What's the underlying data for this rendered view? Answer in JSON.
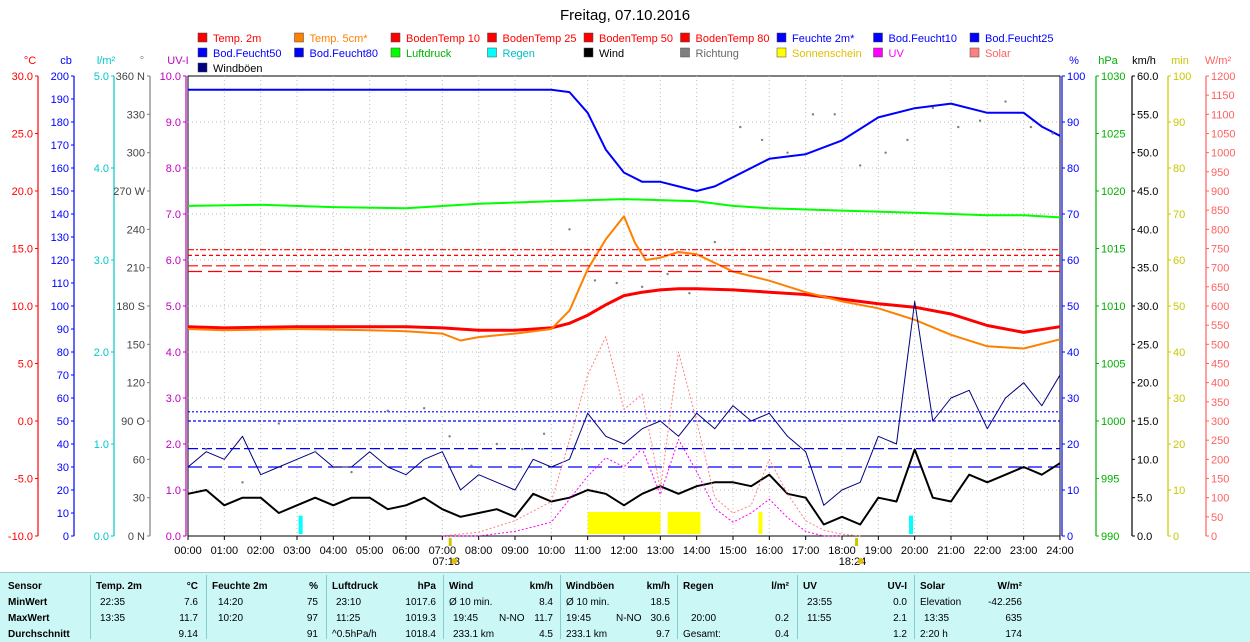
{
  "title": "Freitag, 07.10.2016",
  "legend": [
    {
      "label": "Temp. 2m",
      "color": "#ff0000"
    },
    {
      "label": "Temp. 5cm*",
      "color": "#ff8000"
    },
    {
      "label": "BodenTemp 10",
      "color": "#ff0000"
    },
    {
      "label": "BodenTemp 25",
      "color": "#ff0000"
    },
    {
      "label": "BodenTemp 50",
      "color": "#ff0000"
    },
    {
      "label": "BodenTemp 80",
      "color": "#ff0000"
    },
    {
      "label": "Feuchte 2m*",
      "color": "#0000ff"
    },
    {
      "label": "Bod.Feucht10",
      "color": "#0000ff"
    },
    {
      "label": "Bod.Feucht25",
      "color": "#0000ff"
    },
    {
      "label": "Bod.Feucht50",
      "color": "#0000ff"
    },
    {
      "label": "Bod.Feucht80",
      "color": "#0000ff"
    },
    {
      "label": "Luftdruck",
      "color": "#00ff00"
    },
    {
      "label": "Regen",
      "color": "#00ffff"
    },
    {
      "label": "Wind",
      "color": "#000000"
    },
    {
      "label": "Richtung",
      "color": "#808080"
    },
    {
      "label": "Sonnenschein",
      "color": "#ffff00"
    },
    {
      "label": "UV",
      "color": "#ff00ff"
    },
    {
      "label": "Solar",
      "color": "#ff8080"
    },
    {
      "label": "Windböen",
      "color": "#000080"
    }
  ],
  "axes": {
    "temp": {
      "unit": "°C",
      "color": "#ff0000",
      "ticks": [
        "30.0",
        "25.0",
        "20.0",
        "15.0",
        "10.0",
        "5.0",
        "0.0",
        "-5.0",
        "-10.0"
      ]
    },
    "cb": {
      "unit": "cb",
      "color": "#0000ff",
      "ticks": [
        "200",
        "190",
        "180",
        "170",
        "160",
        "150",
        "140",
        "130",
        "120",
        "110",
        "100",
        "90",
        "80",
        "70",
        "60",
        "50",
        "40",
        "30",
        "20",
        "10",
        "0"
      ]
    },
    "rain": {
      "unit": "l/m²",
      "color": "#00c8c8",
      "ticks": [
        "5.0",
        "4.0",
        "3.0",
        "2.0",
        "1.0",
        "0.0"
      ]
    },
    "dir": {
      "unit": "°",
      "color": "#808080",
      "ticks": [
        "360 N",
        "330",
        "300",
        "270 W",
        "240",
        "210",
        "180 S",
        "150",
        "120",
        "90 O",
        "60",
        "30",
        "0 N"
      ]
    },
    "uv": {
      "unit": "UV-I",
      "color": "#c000c0",
      "ticks": [
        "10.0",
        "9.0",
        "8.0",
        "7.0",
        "6.0",
        "5.0",
        "4.0",
        "3.0",
        "2.0",
        "1.0",
        "0.0"
      ]
    },
    "hum": {
      "unit": "%",
      "color": "#0000ff",
      "ticks": [
        "100",
        "90",
        "80",
        "70",
        "60",
        "50",
        "40",
        "30",
        "20",
        "10",
        "0"
      ]
    },
    "press": {
      "unit": "hPa",
      "color": "#00b000",
      "ticks": [
        "1030",
        "1025",
        "1020",
        "1015",
        "1010",
        "1005",
        "1000",
        "995",
        "990"
      ]
    },
    "wind": {
      "unit": "km/h",
      "color": "#000000",
      "ticks": [
        "60.0",
        "55.0",
        "50.0",
        "45.0",
        "40.0",
        "35.0",
        "30.0",
        "25.0",
        "20.0",
        "15.0",
        "10.0",
        "5.0",
        "0.0"
      ]
    },
    "sun": {
      "unit": "min",
      "color": "#c8c800",
      "ticks": [
        "100",
        "90",
        "80",
        "70",
        "60",
        "50",
        "40",
        "30",
        "20",
        "10",
        "0"
      ]
    },
    "solar": {
      "unit": "W/m²",
      "color": "#ff6060",
      "ticks": [
        "1200",
        "1150",
        "1100",
        "1050",
        "1000",
        "950",
        "900",
        "850",
        "800",
        "750",
        "700",
        "650",
        "600",
        "550",
        "500",
        "450",
        "400",
        "350",
        "300",
        "250",
        "200",
        "150",
        "100",
        "50",
        "0"
      ]
    }
  },
  "x_ticks": [
    "00:00",
    "01:00",
    "02:00",
    "03:00",
    "04:00",
    "05:00",
    "06:00",
    "07:00",
    "08:00",
    "09:00",
    "10:00",
    "11:00",
    "12:00",
    "13:00",
    "14:00",
    "15:00",
    "16:00",
    "17:00",
    "18:00",
    "19:00",
    "20:00",
    "21:00",
    "22:00",
    "23:00",
    "24:00"
  ],
  "sunrise": "07:13",
  "sunset": "18:24",
  "chart_data": {
    "type": "line",
    "x_unit": "hours",
    "x_range": [
      0,
      24
    ],
    "series": [
      {
        "name": "Temp. 2m",
        "axis": "temp",
        "color": "#ff0000",
        "x": [
          0,
          1,
          3,
          5,
          6,
          7,
          8,
          9,
          10,
          10.5,
          11,
          11.5,
          12,
          12.5,
          13,
          13.5,
          14,
          15,
          16,
          17,
          18,
          19,
          20,
          21,
          22,
          23,
          24
        ],
        "y": [
          8.2,
          8.1,
          8.2,
          8.2,
          8.2,
          8.1,
          7.9,
          7.9,
          8.1,
          8.5,
          9.2,
          10.1,
          10.9,
          11.2,
          11.4,
          11.5,
          11.5,
          11.4,
          11.2,
          11.0,
          10.6,
          10.2,
          9.9,
          9.3,
          8.3,
          7.7,
          8.2
        ]
      },
      {
        "name": "Temp. 5cm*",
        "axis": "temp",
        "color": "#ff8000",
        "x": [
          0,
          1,
          3,
          5,
          6,
          7,
          7.5,
          8,
          9,
          10,
          10.5,
          11,
          11.5,
          12,
          12.3,
          12.6,
          13,
          13.5,
          14,
          15,
          16,
          17,
          18,
          19,
          20,
          21,
          22,
          23,
          24
        ],
        "y": [
          8.0,
          7.9,
          8.0,
          7.9,
          7.8,
          7.6,
          7.0,
          7.3,
          7.6,
          8.0,
          9.6,
          13.2,
          15.8,
          17.8,
          15.5,
          14.0,
          14.2,
          14.7,
          14.5,
          13.0,
          12.2,
          11.2,
          10.4,
          9.8,
          8.8,
          7.5,
          6.5,
          6.3,
          7.1
        ]
      },
      {
        "name": "BodenTemp 10",
        "axis": "temp",
        "color": "#ff0000",
        "x": [
          0,
          24
        ],
        "y": [
          14.9,
          14.9
        ]
      },
      {
        "name": "BodenTemp 25",
        "axis": "temp",
        "color": "#ff0000",
        "x": [
          0,
          24
        ],
        "y": [
          14.4,
          14.4
        ]
      },
      {
        "name": "BodenTemp 50",
        "axis": "temp",
        "color": "#ff0000",
        "x": [
          0,
          24
        ],
        "y": [
          13.5,
          13.5
        ]
      },
      {
        "name": "BodenTemp 80",
        "axis": "temp",
        "color": "#ff0000",
        "x": [
          0,
          24
        ],
        "y": [
          13.0,
          13.0
        ]
      },
      {
        "name": "Feuchte 2m*",
        "axis": "hum",
        "color": "#0000ff",
        "x": [
          0,
          1,
          2,
          3,
          4,
          5,
          6,
          7,
          8,
          9,
          10,
          10.5,
          11,
          11.5,
          12,
          12.5,
          13,
          13.5,
          14,
          14.5,
          15,
          16,
          17,
          18,
          19,
          20,
          21,
          22,
          23,
          23.5,
          24
        ],
        "y": [
          97,
          97,
          97,
          97,
          97,
          97,
          97,
          97,
          97,
          97,
          97,
          96.5,
          92,
          84,
          79,
          77,
          77,
          76,
          75,
          76,
          78,
          82,
          83,
          86,
          91,
          93,
          94,
          92,
          92,
          89,
          87
        ]
      },
      {
        "name": "Bod.Feucht10",
        "axis": "hum",
        "color": "#0000ff",
        "x": [
          0,
          24
        ],
        "y": [
          27,
          27
        ]
      },
      {
        "name": "Bod.Feucht25",
        "axis": "hum",
        "color": "#0000ff",
        "x": [
          0,
          24
        ],
        "y": [
          25,
          25
        ]
      },
      {
        "name": "Bod.Feucht50",
        "axis": "hum",
        "color": "#0000ff",
        "x": [
          0,
          24
        ],
        "y": [
          19,
          19
        ]
      },
      {
        "name": "Bod.Feucht80",
        "axis": "hum",
        "color": "#0000ff",
        "x": [
          0,
          24
        ],
        "y": [
          15,
          15
        ]
      },
      {
        "name": "Luftdruck",
        "axis": "press",
        "color": "#00ff00",
        "x": [
          0,
          2,
          4,
          6,
          8,
          10,
          12,
          14,
          15,
          16,
          18,
          20,
          22,
          23,
          24
        ],
        "y": [
          1018.7,
          1018.8,
          1018.6,
          1018.5,
          1018.9,
          1019.1,
          1019.3,
          1019.1,
          1018.7,
          1018.5,
          1018.3,
          1018.1,
          1017.9,
          1017.9,
          1017.7
        ]
      },
      {
        "name": "Wind",
        "axis": "wind",
        "color": "#000000",
        "x": [
          0,
          0.5,
          1,
          1.5,
          2,
          2.5,
          3,
          3.5,
          4,
          4.5,
          5,
          5.5,
          6,
          6.5,
          7,
          7.5,
          8,
          8.5,
          9,
          9.5,
          10,
          10.5,
          11,
          11.5,
          12,
          12.5,
          13,
          13.5,
          14,
          14.5,
          15,
          15.5,
          16,
          16.5,
          17,
          17.5,
          18,
          18.5,
          19,
          19.5,
          20,
          20.5,
          21,
          21.5,
          22,
          22.5,
          23,
          23.5,
          24
        ],
        "y": [
          5.5,
          6,
          4,
          5,
          5,
          3,
          4,
          5,
          4,
          5,
          5,
          3.5,
          4,
          5,
          3.5,
          2.5,
          3,
          3.5,
          2.5,
          5.5,
          4.5,
          5,
          6,
          5.5,
          4,
          5.5,
          6.5,
          5.5,
          6.5,
          7,
          7,
          6.5,
          8,
          5.5,
          5,
          1.5,
          2.5,
          1.5,
          5,
          4.5,
          11.3,
          5,
          4.5,
          8,
          7,
          8,
          9,
          8,
          9.5
        ]
      },
      {
        "name": "Windböen",
        "axis": "wind",
        "color": "#000080",
        "x": [
          0,
          0.5,
          1,
          1.5,
          2,
          2.5,
          3,
          3.5,
          4,
          4.5,
          5,
          5.5,
          6,
          6.5,
          7,
          7.5,
          8,
          8.5,
          9,
          9.5,
          10,
          10.5,
          11,
          11.5,
          12,
          12.5,
          13,
          13.5,
          14,
          14.5,
          15,
          15.5,
          16,
          16.5,
          17,
          17.5,
          18,
          18.5,
          19,
          19.5,
          20,
          20.5,
          21,
          21.5,
          22,
          22.5,
          23,
          23.5,
          24
        ],
        "y": [
          9,
          11,
          10,
          13,
          8,
          9,
          10,
          11,
          9,
          9,
          11,
          9,
          8,
          10,
          11,
          6,
          8,
          7,
          6,
          10,
          9,
          10,
          16,
          13,
          12,
          14,
          15,
          13,
          16,
          14,
          17,
          15,
          16,
          13,
          11,
          4,
          6,
          7,
          13,
          12,
          30.6,
          15,
          18,
          19,
          14,
          18,
          20,
          17,
          21
        ]
      },
      {
        "name": "Richtung",
        "axis": "dir",
        "color": "#808080",
        "type": "scatter",
        "x": [
          0.5,
          1.5,
          2.5,
          3.5,
          4.5,
          5.5,
          6.5,
          7.2,
          7.8,
          8.5,
          9.2,
          9.8,
          10.5,
          11.2,
          11.8,
          12.5,
          13.2,
          13.8,
          14.5,
          15.2,
          15.8,
          16.5,
          17.2,
          17.8,
          18.5,
          19.2,
          19.8,
          20.5,
          21.2,
          21.8,
          22.5,
          23.2,
          23.8
        ],
        "y": [
          68,
          42,
          88,
          66,
          50,
          98,
          100,
          78,
          55,
          72,
          68,
          80,
          240,
          200,
          198,
          195,
          205,
          190,
          230,
          320,
          310,
          300,
          330,
          330,
          290,
          300,
          310,
          335,
          320,
          325,
          340,
          320,
          315
        ]
      },
      {
        "name": "Solar",
        "axis": "solar",
        "color": "#ff8080",
        "x": [
          7,
          8,
          9,
          10,
          10.5,
          11,
          11.5,
          12,
          12.5,
          13,
          13.5,
          14,
          14.5,
          15,
          15.5,
          16,
          16.5,
          17,
          17.5,
          18,
          18.5
        ],
        "y": [
          0,
          10,
          40,
          90,
          250,
          420,
          520,
          330,
          370,
          120,
          480,
          300,
          100,
          60,
          80,
          200,
          110,
          40,
          15,
          5,
          0
        ]
      },
      {
        "name": "UV",
        "axis": "uv",
        "color": "#ff00ff",
        "x": [
          7,
          8,
          9,
          10,
          10.5,
          11,
          11.5,
          12,
          12.5,
          13,
          13.5,
          14,
          14.5,
          15,
          15.5,
          16,
          16.5,
          17,
          17.5,
          18
        ],
        "y": [
          0,
          0,
          0.1,
          0.3,
          0.8,
          1.3,
          1.7,
          1.5,
          1.9,
          0.9,
          2.1,
          1.4,
          0.6,
          0.3,
          0.5,
          0.8,
          0.4,
          0.1,
          0,
          0
        ]
      },
      {
        "name": "Regen",
        "axis": "rain",
        "color": "#00ffff",
        "type": "bar",
        "x": [
          3.1,
          19.9
        ],
        "y": [
          0.2,
          0.2
        ]
      },
      {
        "name": "Sonnenschein",
        "axis": "sun",
        "color": "#ffff00",
        "type": "bar",
        "x": [
          11,
          11.5,
          12,
          12.4,
          13.2,
          13.5,
          15.7
        ],
        "y": [
          5,
          5,
          5,
          5,
          5,
          5,
          5
        ]
      }
    ]
  },
  "stats": {
    "row_labels": [
      "Sensor",
      "MinWert",
      "MaxWert",
      "Durchschnitt"
    ],
    "temp": {
      "h1": "Temp. 2m",
      "h2": "°C",
      "min_t": "22:35",
      "min_v": "7.6",
      "max_t": "13:35",
      "max_v": "11.7",
      "avg_v": "9.14"
    },
    "hum": {
      "h1": "Feuchte 2m",
      "h2": "%",
      "min_t": "14:20",
      "min_v": "75",
      "max_t": "10:20",
      "max_v": "97",
      "avg_v": "91"
    },
    "press": {
      "h1": "Luftdruck",
      "h2": "hPa",
      "min_t": "23:10",
      "min_v": "1017.6",
      "max_t": "11:25",
      "max_v": "1019.3",
      "avg_l": "^0.5hPa/h",
      "avg_v": "1018.4"
    },
    "wind": {
      "h1": "Wind",
      "h2": "km/h",
      "min_t": "Ø 10 min.",
      "min_v": "8.4",
      "max_t": "19:45",
      "max_d": "N-NO",
      "max_v": "11.7",
      "avg_l": "233.1 km",
      "avg_v": "4.5"
    },
    "gust": {
      "h1": "Windböen",
      "h2": "km/h",
      "min_t": "Ø 10 min.",
      "min_v": "18.5",
      "max_t": "19:45",
      "max_d": "N-NO",
      "max_v": "30.6",
      "avg_l": "233.1 km",
      "avg_v": "9.7"
    },
    "rain": {
      "h1": "Regen",
      "h2": "l/m²",
      "max_t": "20:00",
      "max_v": "0.2",
      "avg_l": "Gesamt:",
      "avg_v": "0.4"
    },
    "uv": {
      "h1": "UV",
      "h2": "UV-I",
      "min_t": "23:55",
      "min_v": "0.0",
      "max_t": "11:55",
      "max_v": "2.1",
      "avg_v": "1.2"
    },
    "solar": {
      "h1": "Solar",
      "h2": "W/m²",
      "min_t": "Elevation",
      "min_v": "-42.256",
      "max_t": "13:35",
      "max_v": "635",
      "avg_l": "2:20 h",
      "avg_v": "174"
    }
  }
}
